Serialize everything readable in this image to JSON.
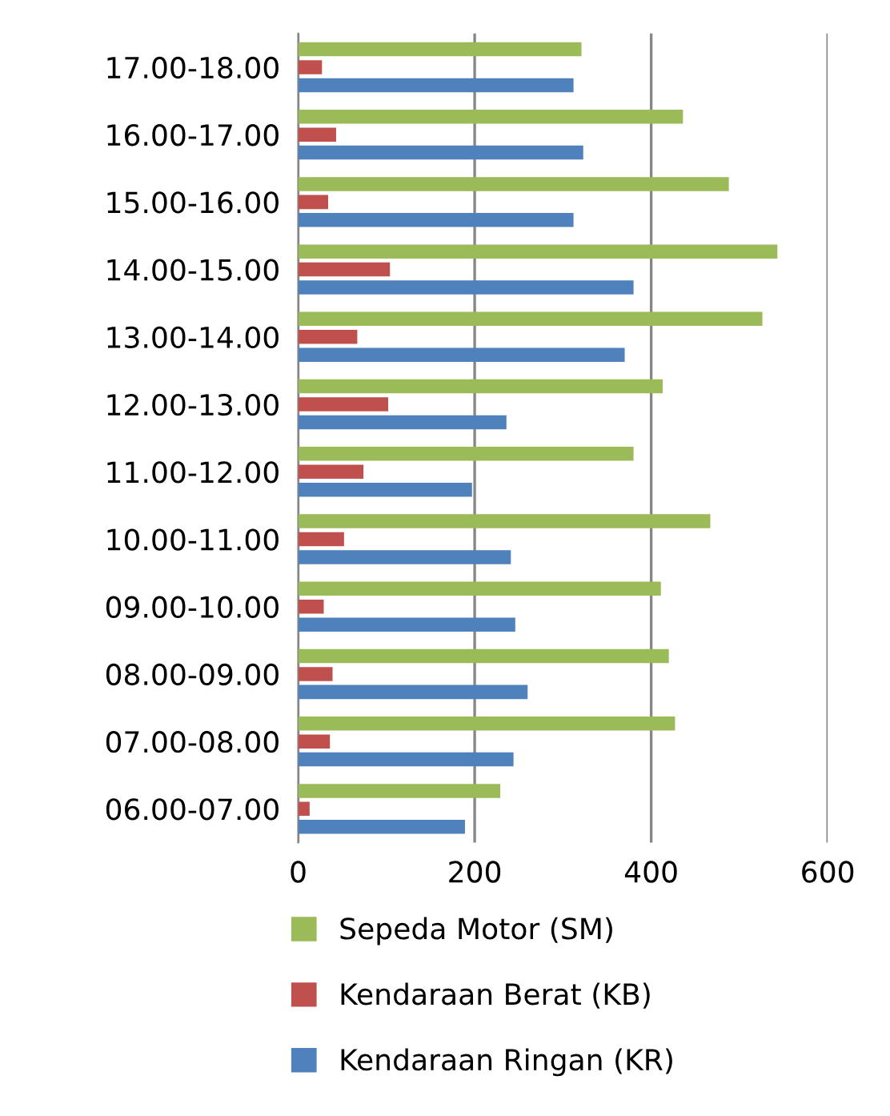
{
  "chart_data": {
    "type": "bar",
    "orientation": "horizontal",
    "categories": [
      "17.00-18.00",
      "16.00-17.00",
      "15.00-16.00",
      "14.00-15.00",
      "13.00-14.00",
      "12.00-13.00",
      "11.00-12.00",
      "10.00-11.00",
      "09.00-10.00",
      "08.00-09.00",
      "07.00-08.00",
      "06.00-07.00"
    ],
    "series": [
      {
        "name": "Sepeda Motor (SM)",
        "color": "#9bbb59",
        "values": [
          321,
          436,
          488,
          543,
          526,
          413,
          380,
          467,
          411,
          420,
          427,
          229
        ]
      },
      {
        "name": "Kendaraan Berat (KB)",
        "color": "#c0504d",
        "values": [
          27,
          43,
          34,
          104,
          67,
          102,
          74,
          52,
          29,
          39,
          36,
          13
        ]
      },
      {
        "name": "Kendaraan Ringan (KR)",
        "color": "#4f81bd",
        "values": [
          312,
          323,
          312,
          380,
          370,
          236,
          197,
          241,
          246,
          260,
          244,
          189
        ]
      }
    ],
    "xlim": [
      0,
      600
    ],
    "xticks": [
      0,
      200,
      400,
      600
    ],
    "grid": "x",
    "legend": "bottom"
  }
}
